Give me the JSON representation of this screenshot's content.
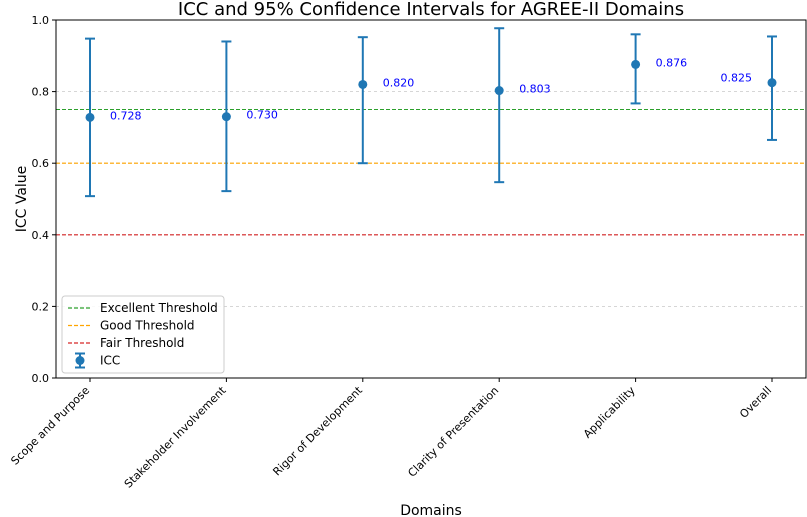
{
  "chart_data": {
    "type": "errorbar",
    "title": "ICC and 95% Confidence Intervals for AGREE-II Domains",
    "xlabel": "Domains",
    "ylabel": "ICC Value",
    "ylim": [
      0.0,
      1.0
    ],
    "yticks": [
      "0.0",
      "0.2",
      "0.4",
      "0.6",
      "0.8",
      "1.0"
    ],
    "grid": "y-dashed",
    "categories": [
      "Scope and Purpose",
      "Stakeholder Involvement",
      "Rigor of Development",
      "Clarity of Presentation",
      "Applicability",
      "Overall"
    ],
    "series": [
      {
        "name": "ICC",
        "color": "#1f77b4",
        "values": [
          0.728,
          0.73,
          0.82,
          0.803,
          0.876,
          0.825
        ],
        "lower": [
          0.508,
          0.522,
          0.6,
          0.547,
          0.767,
          0.665
        ],
        "upper": [
          0.948,
          0.94,
          0.952,
          0.977,
          0.96,
          0.954
        ],
        "labels": [
          "0.728",
          "0.730",
          "0.820",
          "0.803",
          "0.876",
          "0.825"
        ]
      }
    ],
    "thresholds": [
      {
        "name": "Excellent Threshold",
        "value": 0.75,
        "color": "#2ca02c"
      },
      {
        "name": "Good Threshold",
        "value": 0.6,
        "color": "#ffa500"
      },
      {
        "name": "Fair Threshold",
        "value": 0.4,
        "color": "#d62728"
      }
    ],
    "legend_position": "lower-left"
  }
}
